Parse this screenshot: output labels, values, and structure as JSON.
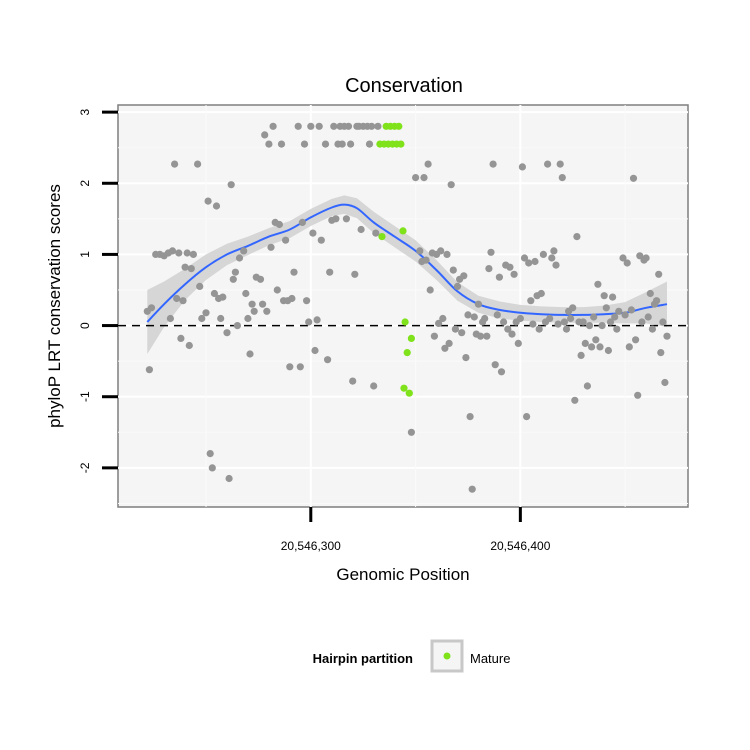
{
  "chart_data": {
    "type": "scatter",
    "title": "Conservation",
    "xlabel": "Genomic Position",
    "ylabel": "phyloP LRT conservation scores",
    "xlim": [
      20546208,
      20546480
    ],
    "ylim": [
      -2.55,
      3.1
    ],
    "x_ticks": [
      20546300,
      20546400
    ],
    "x_tick_labels": [
      "20,546,300",
      "20,546,400"
    ],
    "y_ticks": [
      -2,
      -1,
      0,
      1,
      2,
      3
    ],
    "y_tick_labels": [
      "-2",
      "-1",
      "0",
      "1",
      "2",
      "3"
    ],
    "reference_line": {
      "y": 0,
      "style": "dashed"
    },
    "grid": true,
    "legend": {
      "title": "Hairpin partition",
      "placement": "bottom",
      "entries": [
        {
          "label": "Mature",
          "color": "#7FE21B"
        }
      ]
    },
    "colors": {
      "background": "#f5f5f5",
      "other_points": "#959595",
      "mature": "#7FE21B",
      "smooth_line": "#3366FF",
      "confidence_band": "#d0d0d0"
    },
    "series": [
      {
        "color": "#959595",
        "points": [
          [
            20546222,
            0.2
          ],
          [
            20546223,
            -0.62
          ],
          [
            20546224,
            0.25
          ],
          [
            20546226,
            1
          ],
          [
            20546228,
            1
          ],
          [
            20546230,
            0.98
          ],
          [
            20546232,
            1.02
          ],
          [
            20546233,
            0.1
          ],
          [
            20546234,
            1.05
          ],
          [
            20546235,
            2.27
          ],
          [
            20546236,
            0.38
          ],
          [
            20546237,
            1.02
          ],
          [
            20546238,
            -0.18
          ],
          [
            20546239,
            0.35
          ],
          [
            20546240,
            0.82
          ],
          [
            20546241,
            1.02
          ],
          [
            20546242,
            -0.28
          ],
          [
            20546243,
            0.8
          ],
          [
            20546244,
            1.0
          ],
          [
            20546246,
            2.27
          ],
          [
            20546247,
            0.55
          ],
          [
            20546248,
            0.1
          ],
          [
            20546250,
            0.18
          ],
          [
            20546251,
            1.75
          ],
          [
            20546252,
            -1.8
          ],
          [
            20546253,
            -2.0
          ],
          [
            20546254,
            0.45
          ],
          [
            20546255,
            1.68
          ],
          [
            20546256,
            0.38
          ],
          [
            20546257,
            0.1
          ],
          [
            20546258,
            0.4
          ],
          [
            20546260,
            -0.1
          ],
          [
            20546261,
            -2.15
          ],
          [
            20546262,
            1.98
          ],
          [
            20546263,
            0.65
          ],
          [
            20546264,
            0.75
          ],
          [
            20546265,
            0.0
          ],
          [
            20546266,
            0.95
          ],
          [
            20546268,
            1.05
          ],
          [
            20546269,
            0.45
          ],
          [
            20546270,
            0.1
          ],
          [
            20546271,
            -0.4
          ],
          [
            20546272,
            0.3
          ],
          [
            20546273,
            0.2
          ],
          [
            20546274,
            0.68
          ],
          [
            20546276,
            0.65
          ],
          [
            20546277,
            0.3
          ],
          [
            20546278,
            2.68
          ],
          [
            20546279,
            0.2
          ],
          [
            20546280,
            2.55
          ],
          [
            20546281,
            1.1
          ],
          [
            20546282,
            2.8
          ],
          [
            20546283,
            1.45
          ],
          [
            20546284,
            0.5
          ],
          [
            20546285,
            1.42
          ],
          [
            20546286,
            2.55
          ],
          [
            20546287,
            0.35
          ],
          [
            20546288,
            1.2
          ],
          [
            20546289,
            0.35
          ],
          [
            20546290,
            -0.58
          ],
          [
            20546291,
            0.38
          ],
          [
            20546292,
            0.75
          ],
          [
            20546294,
            2.8
          ],
          [
            20546295,
            -0.58
          ],
          [
            20546296,
            1.45
          ],
          [
            20546297,
            2.55
          ],
          [
            20546298,
            0.35
          ],
          [
            20546299,
            0.05
          ],
          [
            20546300,
            2.8
          ],
          [
            20546301,
            1.3
          ],
          [
            20546302,
            -0.35
          ],
          [
            20546303,
            0.08
          ],
          [
            20546304,
            2.8
          ],
          [
            20546305,
            1.2
          ],
          [
            20546307,
            2.55
          ],
          [
            20546308,
            -0.48
          ],
          [
            20546309,
            0.75
          ],
          [
            20546310,
            1.48
          ],
          [
            20546311,
            2.8
          ],
          [
            20546312,
            1.5
          ],
          [
            20546313,
            2.55
          ],
          [
            20546314,
            2.8
          ],
          [
            20546315,
            2.55
          ],
          [
            20546316,
            2.8
          ],
          [
            20546317,
            1.5
          ],
          [
            20546318,
            2.8
          ],
          [
            20546319,
            2.55
          ],
          [
            20546320,
            -0.78
          ],
          [
            20546321,
            0.72
          ],
          [
            20546322,
            2.8
          ],
          [
            20546323,
            2.8
          ],
          [
            20546324,
            1.35
          ],
          [
            20546325,
            2.8
          ],
          [
            20546327,
            2.8
          ],
          [
            20546328,
            2.55
          ],
          [
            20546329,
            2.8
          ],
          [
            20546330,
            -0.85
          ],
          [
            20546331,
            1.3
          ],
          [
            20546332,
            2.8
          ],
          [
            20546348,
            -1.5
          ],
          [
            20546350,
            2.08
          ],
          [
            20546352,
            1.05
          ],
          [
            20546353,
            0.9
          ],
          [
            20546354,
            2.08
          ],
          [
            20546355,
            0.92
          ],
          [
            20546356,
            2.27
          ],
          [
            20546357,
            0.5
          ],
          [
            20546358,
            1.02
          ],
          [
            20546359,
            -0.15
          ],
          [
            20546360,
            1.0
          ],
          [
            20546361,
            0.03
          ],
          [
            20546362,
            1.05
          ],
          [
            20546363,
            0.1
          ],
          [
            20546364,
            -0.32
          ],
          [
            20546365,
            1.0
          ],
          [
            20546366,
            -0.25
          ],
          [
            20546367,
            1.98
          ],
          [
            20546368,
            0.78
          ],
          [
            20546369,
            -0.05
          ],
          [
            20546370,
            0.55
          ],
          [
            20546371,
            0.65
          ],
          [
            20546372,
            -0.1
          ],
          [
            20546373,
            0.7
          ],
          [
            20546374,
            -0.45
          ],
          [
            20546375,
            0.15
          ],
          [
            20546376,
            -1.28
          ],
          [
            20546377,
            -2.3
          ],
          [
            20546378,
            0.12
          ],
          [
            20546379,
            -0.12
          ],
          [
            20546380,
            0.3
          ],
          [
            20546381,
            -0.15
          ],
          [
            20546382,
            0.05
          ],
          [
            20546383,
            0.1
          ],
          [
            20546384,
            -0.15
          ],
          [
            20546385,
            0.8
          ],
          [
            20546386,
            1.03
          ],
          [
            20546387,
            2.27
          ],
          [
            20546388,
            -0.55
          ],
          [
            20546389,
            0.15
          ],
          [
            20546390,
            0.68
          ],
          [
            20546391,
            -0.65
          ],
          [
            20546392,
            0.05
          ],
          [
            20546393,
            0.85
          ],
          [
            20546394,
            -0.05
          ],
          [
            20546395,
            0.82
          ],
          [
            20546396,
            -0.12
          ],
          [
            20546397,
            0.72
          ],
          [
            20546398,
            0.05
          ],
          [
            20546399,
            -0.25
          ],
          [
            20546400,
            0.1
          ],
          [
            20546401,
            2.23
          ],
          [
            20546402,
            0.95
          ],
          [
            20546403,
            -1.28
          ],
          [
            20546404,
            0.88
          ],
          [
            20546405,
            0.35
          ],
          [
            20546406,
            0.02
          ],
          [
            20546407,
            0.9
          ],
          [
            20546408,
            0.42
          ],
          [
            20546409,
            -0.05
          ],
          [
            20546410,
            0.45
          ],
          [
            20546411,
            1.0
          ],
          [
            20546412,
            0.05
          ],
          [
            20546413,
            2.27
          ],
          [
            20546414,
            0.1
          ],
          [
            20546415,
            0.95
          ],
          [
            20546416,
            1.05
          ],
          [
            20546417,
            0.85
          ],
          [
            20546418,
            0.02
          ],
          [
            20546419,
            2.27
          ],
          [
            20546420,
            2.08
          ],
          [
            20546421,
            0.05
          ],
          [
            20546422,
            -0.05
          ],
          [
            20546423,
            0.2
          ],
          [
            20546424,
            0.1
          ],
          [
            20546425,
            0.25
          ],
          [
            20546426,
            -1.05
          ],
          [
            20546427,
            1.25
          ],
          [
            20546428,
            0.05
          ],
          [
            20546429,
            -0.42
          ],
          [
            20546430,
            0.05
          ],
          [
            20546431,
            -0.25
          ],
          [
            20546432,
            -0.85
          ],
          [
            20546433,
            0.0
          ],
          [
            20546434,
            -0.3
          ],
          [
            20546435,
            0.12
          ],
          [
            20546436,
            -0.2
          ],
          [
            20546437,
            0.58
          ],
          [
            20546438,
            -0.3
          ],
          [
            20546439,
            0.0
          ],
          [
            20546440,
            0.42
          ],
          [
            20546441,
            0.25
          ],
          [
            20546442,
            -0.35
          ],
          [
            20546443,
            0.05
          ],
          [
            20546444,
            0.4
          ],
          [
            20546445,
            0.12
          ],
          [
            20546446,
            -0.05
          ],
          [
            20546447,
            0.2
          ],
          [
            20546449,
            0.95
          ],
          [
            20546450,
            0.15
          ],
          [
            20546451,
            0.88
          ],
          [
            20546452,
            -0.3
          ],
          [
            20546453,
            0.22
          ],
          [
            20546454,
            2.07
          ],
          [
            20546455,
            -0.2
          ],
          [
            20546456,
            -0.98
          ],
          [
            20546457,
            0.98
          ],
          [
            20546458,
            0.05
          ],
          [
            20546459,
            0.92
          ],
          [
            20546460,
            0.95
          ],
          [
            20546461,
            0.12
          ],
          [
            20546462,
            0.45
          ],
          [
            20546463,
            -0.05
          ],
          [
            20546464,
            0.3
          ],
          [
            20546465,
            0.35
          ],
          [
            20546466,
            0.72
          ],
          [
            20546467,
            -0.38
          ],
          [
            20546468,
            0.05
          ],
          [
            20546469,
            -0.8
          ],
          [
            20546470,
            -0.15
          ]
        ]
      },
      {
        "name": "Mature",
        "color": "#7FE21B",
        "points": [
          [
            20546333,
            2.55
          ],
          [
            20546334,
            1.25
          ],
          [
            20546335,
            2.55
          ],
          [
            20546336,
            2.8
          ],
          [
            20546337,
            2.55
          ],
          [
            20546338,
            2.8
          ],
          [
            20546339,
            2.55
          ],
          [
            20546340,
            2.8
          ],
          [
            20546341,
            2.55
          ],
          [
            20546342,
            2.8
          ],
          [
            20546343,
            2.55
          ],
          [
            20546344,
            1.33
          ],
          [
            20546344.5,
            -0.88
          ],
          [
            20546345,
            0.05
          ],
          [
            20546346,
            -0.38
          ],
          [
            20546347,
            -0.95
          ],
          [
            20546348,
            -0.18
          ]
        ]
      }
    ],
    "smooth": {
      "x": [
        20546222,
        20546230,
        20546240,
        20546250,
        20546260,
        20546270,
        20546280,
        20546290,
        20546300,
        20546310,
        20546316,
        20546322,
        20546330,
        20546340,
        20546350,
        20546360,
        20546370,
        20546380,
        20546390,
        20546400,
        20546410,
        20546420,
        20546430,
        20546440,
        20546450,
        20546460,
        20546470
      ],
      "y": [
        0.05,
        0.3,
        0.58,
        0.82,
        1.0,
        1.12,
        1.25,
        1.35,
        1.52,
        1.66,
        1.7,
        1.65,
        1.45,
        1.25,
        1.05,
        0.78,
        0.48,
        0.3,
        0.22,
        0.18,
        0.16,
        0.15,
        0.15,
        0.16,
        0.18,
        0.25,
        0.3
      ],
      "band": [
        0.45,
        0.32,
        0.22,
        0.18,
        0.15,
        0.13,
        0.12,
        0.12,
        0.12,
        0.12,
        0.13,
        0.14,
        0.15,
        0.15,
        0.15,
        0.14,
        0.13,
        0.12,
        0.12,
        0.11,
        0.11,
        0.11,
        0.11,
        0.12,
        0.15,
        0.22,
        0.32
      ]
    }
  }
}
